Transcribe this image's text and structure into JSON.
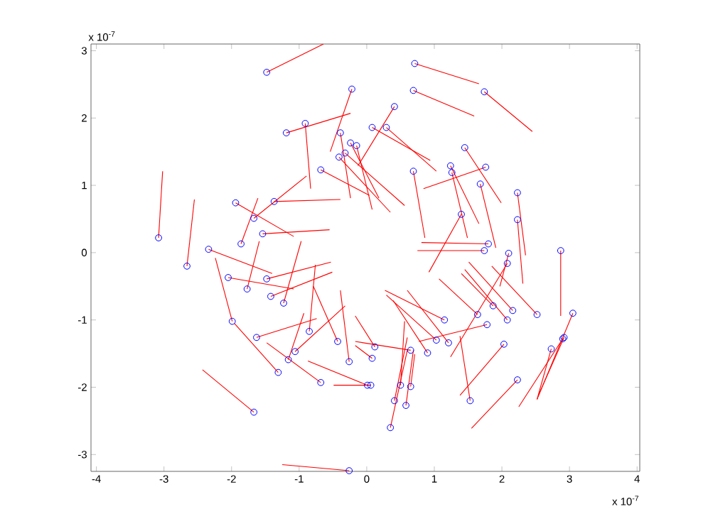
{
  "chart_data": {
    "type": "scatter",
    "xlim": [
      -4.08,
      4.04
    ],
    "ylim": [
      -3.25,
      3.1
    ],
    "xticks": [
      -4,
      -3,
      -2,
      -1,
      0,
      1,
      2,
      3,
      4
    ],
    "yticks": [
      -3,
      -2,
      -1,
      0,
      1,
      2,
      3
    ],
    "annotations": [
      "x 10$^{-7}$",
      "x 10$^{-7}$"
    ],
    "series": [
      {
        "type": "line",
        "color": "#ff0000",
        "x": [
          -1.48,
          -0.64
        ],
        "values": [
          2.68,
          3.1
        ]
      },
      {
        "type": "line",
        "color": "#ff0000",
        "x": [
          -0.22,
          -0.54
        ],
        "values": [
          2.43,
          1.5
        ]
      },
      {
        "type": "line",
        "color": "#ff0000",
        "x": [
          -0.91,
          -0.83
        ],
        "values": [
          1.92,
          0.95
        ]
      },
      {
        "type": "line",
        "color": "#ff0000",
        "x": [
          -1.19,
          -0.24
        ],
        "values": [
          1.78,
          2.07
        ]
      },
      {
        "type": "line",
        "color": "#ff0000",
        "x": [
          -0.39,
          -0.24
        ],
        "values": [
          1.78,
          0.81
        ]
      },
      {
        "type": "line",
        "color": "#ff0000",
        "x": [
          -0.24,
          0.18
        ],
        "values": [
          1.63,
          0.81
        ]
      },
      {
        "type": "line",
        "color": "#ff0000",
        "x": [
          -0.15,
          0.08
        ],
        "values": [
          1.59,
          0.64
        ]
      },
      {
        "type": "line",
        "color": "#ff0000",
        "x": [
          -0.32,
          0.56
        ],
        "values": [
          1.48,
          0.7
        ]
      },
      {
        "type": "line",
        "color": "#ff0000",
        "x": [
          -0.41,
          0.35
        ],
        "values": [
          1.42,
          0.6
        ]
      },
      {
        "type": "line",
        "color": "#ff0000",
        "x": [
          -0.68,
          0.04
        ],
        "values": [
          1.23,
          0.85
        ]
      },
      {
        "type": "line",
        "color": "#ff0000",
        "x": [
          -3.08,
          -3.02
        ],
        "values": [
          0.22,
          1.21
        ]
      },
      {
        "type": "line",
        "color": "#ff0000",
        "x": [
          -2.66,
          -2.55
        ],
        "values": [
          -0.2,
          0.79
        ]
      },
      {
        "type": "line",
        "color": "#ff0000",
        "x": [
          -1.94,
          -1.08
        ],
        "values": [
          0.74,
          0.24
        ]
      },
      {
        "type": "line",
        "color": "#ff0000",
        "x": [
          -1.37,
          -0.39
        ],
        "values": [
          0.76,
          0.79
        ]
      },
      {
        "type": "line",
        "color": "#ff0000",
        "x": [
          -1.67,
          -0.89
        ],
        "values": [
          0.51,
          1.14
        ]
      },
      {
        "type": "line",
        "color": "#ff0000",
        "x": [
          -1.86,
          -1.61
        ],
        "values": [
          0.13,
          0.81
        ]
      },
      {
        "type": "line",
        "color": "#ff0000",
        "x": [
          -1.54,
          -0.55
        ],
        "values": [
          0.28,
          0.34
        ]
      },
      {
        "type": "line",
        "color": "#ff0000",
        "x": [
          -2.34,
          -1.4
        ],
        "values": [
          0.05,
          -0.31
        ]
      },
      {
        "type": "line",
        "color": "#ff0000",
        "x": [
          0.71,
          1.66
        ],
        "values": [
          2.81,
          2.51
        ]
      },
      {
        "type": "line",
        "color": "#ff0000",
        "x": [
          0.69,
          1.59
        ],
        "values": [
          2.41,
          2.03
        ]
      },
      {
        "type": "line",
        "color": "#ff0000",
        "x": [
          1.74,
          2.45
        ],
        "values": [
          2.39,
          1.8
        ]
      },
      {
        "type": "line",
        "color": "#ff0000",
        "x": [
          0.41,
          -0.13
        ],
        "values": [
          2.17,
          1.29
        ]
      },
      {
        "type": "line",
        "color": "#ff0000",
        "x": [
          0.08,
          0.94
        ],
        "values": [
          1.86,
          1.37
        ]
      },
      {
        "type": "line",
        "color": "#ff0000",
        "x": [
          0.29,
          1.03
        ],
        "values": [
          1.86,
          1.21
        ]
      },
      {
        "type": "line",
        "color": "#ff0000",
        "x": [
          1.45,
          1.99
        ],
        "values": [
          1.56,
          0.74
        ]
      },
      {
        "type": "line",
        "color": "#ff0000",
        "x": [
          1.76,
          0.84
        ],
        "values": [
          1.27,
          0.95
        ]
      },
      {
        "type": "line",
        "color": "#ff0000",
        "x": [
          1.24,
          1.66
        ],
        "values": [
          1.29,
          0.43
        ]
      },
      {
        "type": "line",
        "color": "#ff0000",
        "x": [
          1.26,
          1.49
        ],
        "values": [
          1.19,
          0.22
        ]
      },
      {
        "type": "line",
        "color": "#ff0000",
        "x": [
          0.69,
          0.86
        ],
        "values": [
          1.21,
          0.22
        ]
      },
      {
        "type": "line",
        "color": "#ff0000",
        "x": [
          1.68,
          1.91
        ],
        "values": [
          1.02,
          0.07
        ]
      },
      {
        "type": "line",
        "color": "#ff0000",
        "x": [
          2.23,
          2.35
        ],
        "values": [
          0.89,
          -0.04
        ]
      },
      {
        "type": "line",
        "color": "#ff0000",
        "x": [
          2.23,
          2.31
        ],
        "values": [
          0.49,
          -0.46
        ]
      },
      {
        "type": "line",
        "color": "#ff0000",
        "x": [
          1.4,
          0.92
        ],
        "values": [
          0.57,
          -0.29
        ]
      },
      {
        "type": "line",
        "color": "#ff0000",
        "x": [
          1.8,
          0.81
        ],
        "values": [
          0.13,
          0.15
        ]
      },
      {
        "type": "line",
        "color": "#ff0000",
        "x": [
          1.74,
          0.75
        ],
        "values": [
          0.03,
          0.03
        ]
      },
      {
        "type": "line",
        "color": "#ff0000",
        "x": [
          2.1,
          1.97
        ],
        "values": [
          -0.01,
          -0.5
        ]
      },
      {
        "type": "line",
        "color": "#ff0000",
        "x": [
          2.87,
          2.87
        ],
        "values": [
          0.03,
          -0.94
        ]
      },
      {
        "type": "line",
        "color": "#ff0000",
        "x": [
          2.08,
          1.24
        ],
        "values": [
          -0.16,
          -1.55
        ]
      },
      {
        "type": "line",
        "color": "#ff0000",
        "x": [
          3.05,
          2.52
        ],
        "values": [
          -0.9,
          -2.18
        ]
      },
      {
        "type": "line",
        "color": "#ff0000",
        "x": [
          2.92,
          2.54
        ],
        "values": [
          -1.26,
          -2.12
        ]
      },
      {
        "type": "line",
        "color": "#ff0000",
        "x": [
          2.9,
          2.25
        ],
        "values": [
          -1.28,
          -2.29
        ]
      },
      {
        "type": "line",
        "color": "#ff0000",
        "x": [
          2.73,
          2.52
        ],
        "values": [
          -1.43,
          -2.18
        ]
      },
      {
        "type": "line",
        "color": "#ff0000",
        "x": [
          2.52,
          1.85
        ],
        "values": [
          -0.92,
          -0.2
        ]
      },
      {
        "type": "line",
        "color": "#ff0000",
        "x": [
          2.16,
          1.51
        ],
        "values": [
          -0.86,
          -0.14
        ]
      },
      {
        "type": "line",
        "color": "#ff0000",
        "x": [
          2.08,
          1.45
        ],
        "values": [
          -1.0,
          -0.25
        ]
      },
      {
        "type": "line",
        "color": "#ff0000",
        "x": [
          1.87,
          1.4
        ],
        "values": [
          -0.79,
          -0.31
        ]
      },
      {
        "type": "line",
        "color": "#ff0000",
        "x": [
          1.64,
          1.07
        ],
        "values": [
          -0.92,
          -0.39
        ]
      },
      {
        "type": "line",
        "color": "#ff0000",
        "x": [
          1.78,
          0.77
        ],
        "values": [
          -1.07,
          -1.32
        ]
      },
      {
        "type": "line",
        "color": "#ff0000",
        "x": [
          1.15,
          0.27
        ],
        "values": [
          -1.0,
          -0.56
        ]
      },
      {
        "type": "line",
        "color": "#ff0000",
        "x": [
          1.03,
          0.29
        ],
        "values": [
          -1.3,
          -0.63
        ]
      },
      {
        "type": "line",
        "color": "#ff0000",
        "x": [
          1.21,
          0.6
        ],
        "values": [
          -1.34,
          -0.56
        ]
      },
      {
        "type": "line",
        "color": "#ff0000",
        "x": [
          0.9,
          0.39
        ],
        "values": [
          -1.49,
          -0.71
        ]
      },
      {
        "type": "line",
        "color": "#ff0000",
        "x": [
          2.03,
          1.38
        ],
        "values": [
          -1.36,
          -2.12
        ]
      },
      {
        "type": "line",
        "color": "#ff0000",
        "x": [
          2.23,
          1.55
        ],
        "values": [
          -1.89,
          -2.61
        ]
      },
      {
        "type": "line",
        "color": "#ff0000",
        "x": [
          1.53,
          1.38
        ],
        "values": [
          -2.2,
          -1.24
        ]
      },
      {
        "type": "line",
        "color": "#ff0000",
        "x": [
          0.65,
          -0.17
        ],
        "values": [
          -1.45,
          -1.32
        ]
      },
      {
        "type": "line",
        "color": "#ff0000",
        "x": [
          0.12,
          -0.17
        ],
        "values": [
          -1.4,
          -0.94
        ]
      },
      {
        "type": "line",
        "color": "#ff0000",
        "x": [
          0.08,
          -0.17
        ],
        "values": [
          -1.57,
          -1.38
        ]
      },
      {
        "type": "line",
        "color": "#ff0000",
        "x": [
          0.06,
          -0.49
        ],
        "values": [
          -1.97,
          -1.97
        ]
      },
      {
        "type": "line",
        "color": "#ff0000",
        "x": [
          0.5,
          0.56
        ],
        "values": [
          -1.97,
          -1.02
        ]
      },
      {
        "type": "line",
        "color": "#ff0000",
        "x": [
          0.65,
          0.71
        ],
        "values": [
          -1.99,
          -1.51
        ]
      },
      {
        "type": "line",
        "color": "#ff0000",
        "x": [
          0.41,
          0.6
        ],
        "values": [
          -2.2,
          -1.26
        ]
      },
      {
        "type": "line",
        "color": "#ff0000",
        "x": [
          0.58,
          0.69
        ],
        "values": [
          -2.27,
          -1.45
        ]
      },
      {
        "type": "line",
        "color": "#ff0000",
        "x": [
          0.35,
          0.6
        ],
        "values": [
          -2.6,
          -1.45
        ]
      },
      {
        "type": "line",
        "color": "#ff0000",
        "x": [
          -2.05,
          -1.08
        ],
        "values": [
          -0.37,
          -0.54
        ]
      },
      {
        "type": "line",
        "color": "#ff0000",
        "x": [
          -1.48,
          -0.53
        ],
        "values": [
          -0.39,
          -0.14
        ]
      },
      {
        "type": "line",
        "color": "#ff0000",
        "x": [
          -1.77,
          -1.59
        ],
        "values": [
          -0.54,
          0.17
        ]
      },
      {
        "type": "line",
        "color": "#ff0000",
        "x": [
          -1.42,
          -0.51
        ],
        "values": [
          -0.65,
          -0.29
        ]
      },
      {
        "type": "line",
        "color": "#ff0000",
        "x": [
          -1.23,
          -0.97
        ],
        "values": [
          -0.75,
          0.17
        ]
      },
      {
        "type": "line",
        "color": "#ff0000",
        "x": [
          -1.99,
          -2.24
        ],
        "values": [
          -1.02,
          -0.08
        ]
      },
      {
        "type": "line",
        "color": "#ff0000",
        "x": [
          -1.63,
          -0.74
        ],
        "values": [
          -1.26,
          -0.98
        ]
      },
      {
        "type": "line",
        "color": "#ff0000",
        "x": [
          -1.31,
          -1.96
        ],
        "values": [
          -1.78,
          -1.05
        ]
      },
      {
        "type": "line",
        "color": "#ff0000",
        "x": [
          -0.85,
          -0.76
        ],
        "values": [
          -1.17,
          -0.18
        ]
      },
      {
        "type": "line",
        "color": "#ff0000",
        "x": [
          -1.06,
          -0.32
        ],
        "values": [
          -1.47,
          -0.79
        ]
      },
      {
        "type": "line",
        "color": "#ff0000",
        "x": [
          -1.16,
          -0.93
        ],
        "values": [
          -1.59,
          -0.9
        ]
      },
      {
        "type": "line",
        "color": "#ff0000",
        "x": [
          -0.43,
          -0.79
        ],
        "values": [
          -1.32,
          -0.5
        ]
      },
      {
        "type": "line",
        "color": "#ff0000",
        "x": [
          -0.26,
          -0.39
        ],
        "values": [
          -1.62,
          -0.56
        ]
      },
      {
        "type": "line",
        "color": "#ff0000",
        "x": [
          -0.68,
          -1.48
        ],
        "values": [
          -1.93,
          -1.34
        ]
      },
      {
        "type": "line",
        "color": "#ff0000",
        "x": [
          0.01,
          -0.87
        ],
        "values": [
          -1.97,
          -1.61
        ]
      },
      {
        "type": "line",
        "color": "#ff0000",
        "x": [
          -1.67,
          -2.43
        ],
        "values": [
          -2.37,
          -1.74
        ]
      },
      {
        "type": "line",
        "color": "#ff0000",
        "x": [
          -0.26,
          -1.25
        ],
        "values": [
          -3.24,
          -3.15
        ]
      },
      {
        "color": "#0000ff",
        "marker": "circle",
        "x": [
          -1.48,
          -0.22,
          -0.91,
          -1.19,
          -0.39,
          -0.24,
          -0.15,
          -0.32,
          -0.41,
          -0.68,
          -3.08,
          -2.66,
          -1.94,
          -1.37,
          -1.67,
          -1.86,
          -1.54,
          -2.34,
          0.71,
          0.69,
          1.74,
          0.41,
          0.08,
          0.29,
          1.45,
          1.76,
          1.24,
          1.26,
          0.69,
          1.68,
          2.23,
          2.23,
          1.4,
          1.8,
          1.74,
          2.1,
          2.87,
          2.08,
          3.05,
          2.92,
          2.9,
          2.73,
          2.52,
          2.16,
          2.08,
          1.87,
          1.64,
          1.78,
          1.15,
          1.03,
          1.21,
          0.9,
          2.03,
          2.23,
          1.53,
          0.65,
          0.12,
          0.08,
          0.06,
          0.5,
          0.65,
          0.41,
          0.58,
          0.35,
          -2.05,
          -1.48,
          -1.77,
          -1.42,
          -1.23,
          -1.99,
          -1.63,
          -1.31,
          -0.85,
          -1.06,
          -1.16,
          -0.43,
          -0.26,
          -0.68,
          0.01,
          -1.67,
          -0.26
        ],
        "values": [
          2.68,
          2.43,
          1.92,
          1.78,
          1.78,
          1.63,
          1.59,
          1.48,
          1.42,
          1.23,
          0.22,
          -0.2,
          0.74,
          0.76,
          0.51,
          0.13,
          0.28,
          0.05,
          2.81,
          2.41,
          2.39,
          2.17,
          1.86,
          1.86,
          1.56,
          1.27,
          1.29,
          1.19,
          1.21,
          1.02,
          0.89,
          0.49,
          0.57,
          0.13,
          0.03,
          -0.01,
          0.03,
          -0.16,
          -0.9,
          -1.26,
          -1.28,
          -1.43,
          -0.92,
          -0.86,
          -1.0,
          -0.79,
          -0.92,
          -1.07,
          -1.0,
          -1.3,
          -1.34,
          -1.49,
          -1.36,
          -1.89,
          -2.2,
          -1.45,
          -1.4,
          -1.57,
          -1.97,
          -1.97,
          -1.99,
          -2.2,
          -2.27,
          -2.6,
          -0.37,
          -0.39,
          -0.54,
          -0.65,
          -0.75,
          -1.02,
          -1.26,
          -1.78,
          -1.17,
          -1.47,
          -1.59,
          -1.32,
          -1.62,
          -1.93,
          -1.97,
          -2.37,
          -3.24
        ]
      }
    ]
  }
}
